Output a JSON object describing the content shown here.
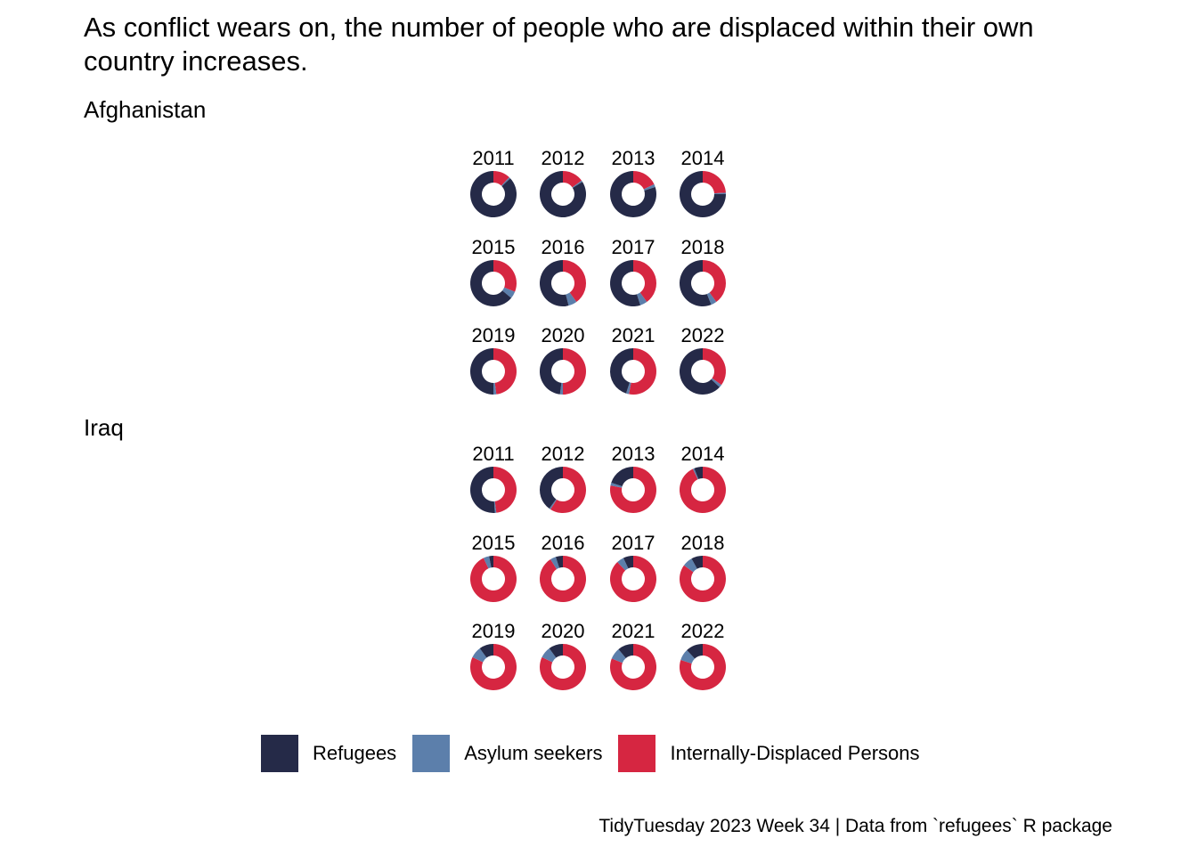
{
  "title": "As conflict wears on, the number of people who are displaced within their own country increases.",
  "caption": "TidyTuesday 2023 Week 34 | Data from `refugees` R package",
  "colors": {
    "refugees": "#252a48",
    "asylum_seekers": "#5c7fab",
    "idps": "#d62641"
  },
  "legend": [
    {
      "label": "Refugees",
      "color": "#252a48"
    },
    {
      "label": "Asylum seekers",
      "color": "#5c7fab"
    },
    {
      "label": "Internally-Displaced Persons",
      "color": "#d62641"
    }
  ],
  "chart_data": [
    {
      "type": "pie",
      "panel": "Afghanistan",
      "series_names": [
        "Refugees",
        "Asylum seekers",
        "Internally-Displaced Persons"
      ],
      "years": [
        "2011",
        "2012",
        "2013",
        "2014",
        "2015",
        "2016",
        "2017",
        "2018",
        "2019",
        "2020",
        "2021",
        "2022"
      ],
      "shares": [
        [
          0.87,
          0.01,
          0.12
        ],
        [
          0.84,
          0.01,
          0.15
        ],
        [
          0.8,
          0.02,
          0.18
        ],
        [
          0.75,
          0.01,
          0.24
        ],
        [
          0.64,
          0.05,
          0.31
        ],
        [
          0.54,
          0.06,
          0.4
        ],
        [
          0.55,
          0.05,
          0.4
        ],
        [
          0.56,
          0.04,
          0.4
        ],
        [
          0.5,
          0.02,
          0.48
        ],
        [
          0.48,
          0.02,
          0.5
        ],
        [
          0.45,
          0.02,
          0.53
        ],
        [
          0.63,
          0.02,
          0.35
        ]
      ]
    },
    {
      "type": "pie",
      "panel": "Iraq",
      "series_names": [
        "Refugees",
        "Asylum seekers",
        "Internally-Displaced Persons"
      ],
      "years": [
        "2011",
        "2012",
        "2013",
        "2014",
        "2015",
        "2016",
        "2017",
        "2018",
        "2019",
        "2020",
        "2021",
        "2022"
      ],
      "shares": [
        [
          0.51,
          0.01,
          0.48
        ],
        [
          0.4,
          0.01,
          0.59
        ],
        [
          0.2,
          0.02,
          0.78
        ],
        [
          0.06,
          0.01,
          0.93
        ],
        [
          0.03,
          0.04,
          0.93
        ],
        [
          0.05,
          0.04,
          0.91
        ],
        [
          0.07,
          0.05,
          0.88
        ],
        [
          0.08,
          0.07,
          0.85
        ],
        [
          0.1,
          0.08,
          0.82
        ],
        [
          0.1,
          0.08,
          0.82
        ],
        [
          0.11,
          0.08,
          0.81
        ],
        [
          0.12,
          0.08,
          0.8
        ]
      ]
    }
  ]
}
